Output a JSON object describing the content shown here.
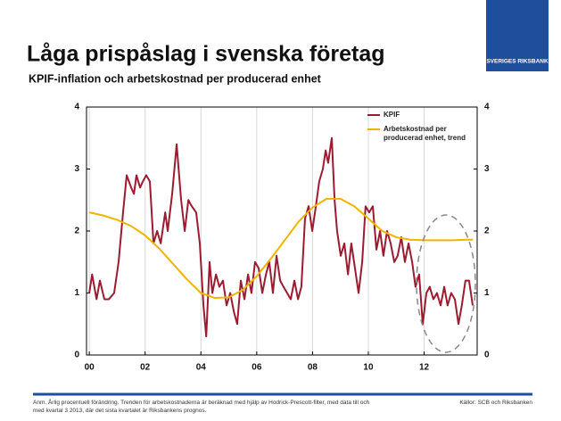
{
  "slide": {
    "logo": "SVERIGES RIKSBANK",
    "note": "Anm. Årlig procentuell förändring. Trenden för arbetskostnaderna är beräknad med hjälp av Hodrick-Prescott-filter, med data till och med kvartal 3 2013, där det sista kvartalet är Riksbankens prognos.",
    "source": "Källor: SCB och Riksbanken"
  },
  "chart_data": {
    "type": "line",
    "title": "Låga prispåslag i svenska företag",
    "subtitle": "KPIF-inflation och arbetskostnad per producerad enhet",
    "xlim": [
      1999.9,
      2013.9
    ],
    "xticks": [
      {
        "value": 2000,
        "label": "00"
      },
      {
        "value": 2002,
        "label": "02"
      },
      {
        "value": 2004,
        "label": "04"
      },
      {
        "value": 2006,
        "label": "06"
      },
      {
        "value": 2008,
        "label": "08"
      },
      {
        "value": 2010,
        "label": "10"
      },
      {
        "value": 2012,
        "label": "12"
      }
    ],
    "ylim": [
      0,
      4
    ],
    "yticks": [
      0,
      1,
      2,
      3,
      4
    ],
    "y2lim": [
      0,
      4
    ],
    "y2ticks": [
      0,
      1,
      2,
      3,
      4
    ],
    "grid": "x",
    "series": [
      {
        "name": "KPIF",
        "color": "#9b1b30",
        "x": [
          2000.0,
          2000.1,
          2000.26,
          2000.38,
          2000.54,
          2000.7,
          2000.89,
          2001.05,
          2001.21,
          2001.34,
          2001.5,
          2001.6,
          2001.69,
          2001.82,
          2001.92,
          2002.04,
          2002.17,
          2002.3,
          2002.43,
          2002.56,
          2002.72,
          2002.81,
          2002.97,
          2003.13,
          2003.29,
          2003.42,
          2003.55,
          2003.67,
          2003.83,
          2003.96,
          2004.09,
          2004.19,
          2004.31,
          2004.41,
          2004.54,
          2004.66,
          2004.79,
          2004.92,
          2005.05,
          2005.18,
          2005.3,
          2005.43,
          2005.56,
          2005.69,
          2005.81,
          2005.94,
          2006.07,
          2006.2,
          2006.33,
          2006.45,
          2006.58,
          2006.71,
          2006.84,
          2006.96,
          2007.09,
          2007.22,
          2007.35,
          2007.48,
          2007.6,
          2007.73,
          2007.86,
          2007.99,
          2008.12,
          2008.24,
          2008.37,
          2008.47,
          2008.56,
          2008.69,
          2008.79,
          2008.88,
          2009.01,
          2009.14,
          2009.27,
          2009.39,
          2009.52,
          2009.65,
          2009.78,
          2009.9,
          2010.03,
          2010.16,
          2010.29,
          2010.42,
          2010.54,
          2010.67,
          2010.8,
          2010.93,
          2011.05,
          2011.18,
          2011.31,
          2011.44,
          2011.57,
          2011.69,
          2011.82,
          2011.95,
          2012.08,
          2012.2,
          2012.33,
          2012.46,
          2012.59,
          2012.72,
          2012.84,
          2012.97,
          2013.1,
          2013.23,
          2013.35,
          2013.48,
          2013.61,
          2013.74
        ],
        "values": [
          1.0,
          1.3,
          0.9,
          1.2,
          0.9,
          0.9,
          1.0,
          1.5,
          2.3,
          2.9,
          2.7,
          2.6,
          2.9,
          2.7,
          2.8,
          2.9,
          2.8,
          1.8,
          2.0,
          1.8,
          2.3,
          2.0,
          2.6,
          3.4,
          2.5,
          2.0,
          2.5,
          2.4,
          2.3,
          1.8,
          0.8,
          0.3,
          1.5,
          1.0,
          1.3,
          1.1,
          1.2,
          0.8,
          1.0,
          0.7,
          0.5,
          1.2,
          0.9,
          1.3,
          1.0,
          1.5,
          1.4,
          1.0,
          1.3,
          1.5,
          1.0,
          1.6,
          1.2,
          1.1,
          1.0,
          0.9,
          1.2,
          0.9,
          1.1,
          2.2,
          2.4,
          2.0,
          2.4,
          2.8,
          3.0,
          3.3,
          3.1,
          3.5,
          2.5,
          2.0,
          1.6,
          1.8,
          1.3,
          1.8,
          1.4,
          1.0,
          1.5,
          2.4,
          2.3,
          2.4,
          1.7,
          2.0,
          1.6,
          2.0,
          1.8,
          1.5,
          1.6,
          1.9,
          1.5,
          1.8,
          1.5,
          1.1,
          1.3,
          0.5,
          1.0,
          1.1,
          0.9,
          1.0,
          0.8,
          1.1,
          0.8,
          1.0,
          0.9,
          0.5,
          0.8,
          1.2,
          1.2,
          0.8
        ]
      },
      {
        "name": "Arbetskostnad per producerad enhet, trend",
        "color": "#f0b400",
        "x": [
          2000.0,
          2000.5,
          2001.0,
          2001.5,
          2002.0,
          2002.5,
          2003.0,
          2003.5,
          2004.0,
          2004.5,
          2005.0,
          2005.5,
          2006.0,
          2006.5,
          2007.0,
          2007.5,
          2008.0,
          2008.5,
          2009.0,
          2009.5,
          2010.0,
          2010.5,
          2011.0,
          2011.5,
          2012.0,
          2012.5,
          2013.0,
          2013.5,
          2013.75
        ],
        "values": [
          2.3,
          2.25,
          2.18,
          2.08,
          1.93,
          1.72,
          1.47,
          1.22,
          1.0,
          0.92,
          0.93,
          1.05,
          1.27,
          1.55,
          1.85,
          2.15,
          2.38,
          2.52,
          2.52,
          2.4,
          2.2,
          2.0,
          1.9,
          1.86,
          1.85,
          1.85,
          1.85,
          1.86,
          1.86
        ]
      }
    ]
  }
}
